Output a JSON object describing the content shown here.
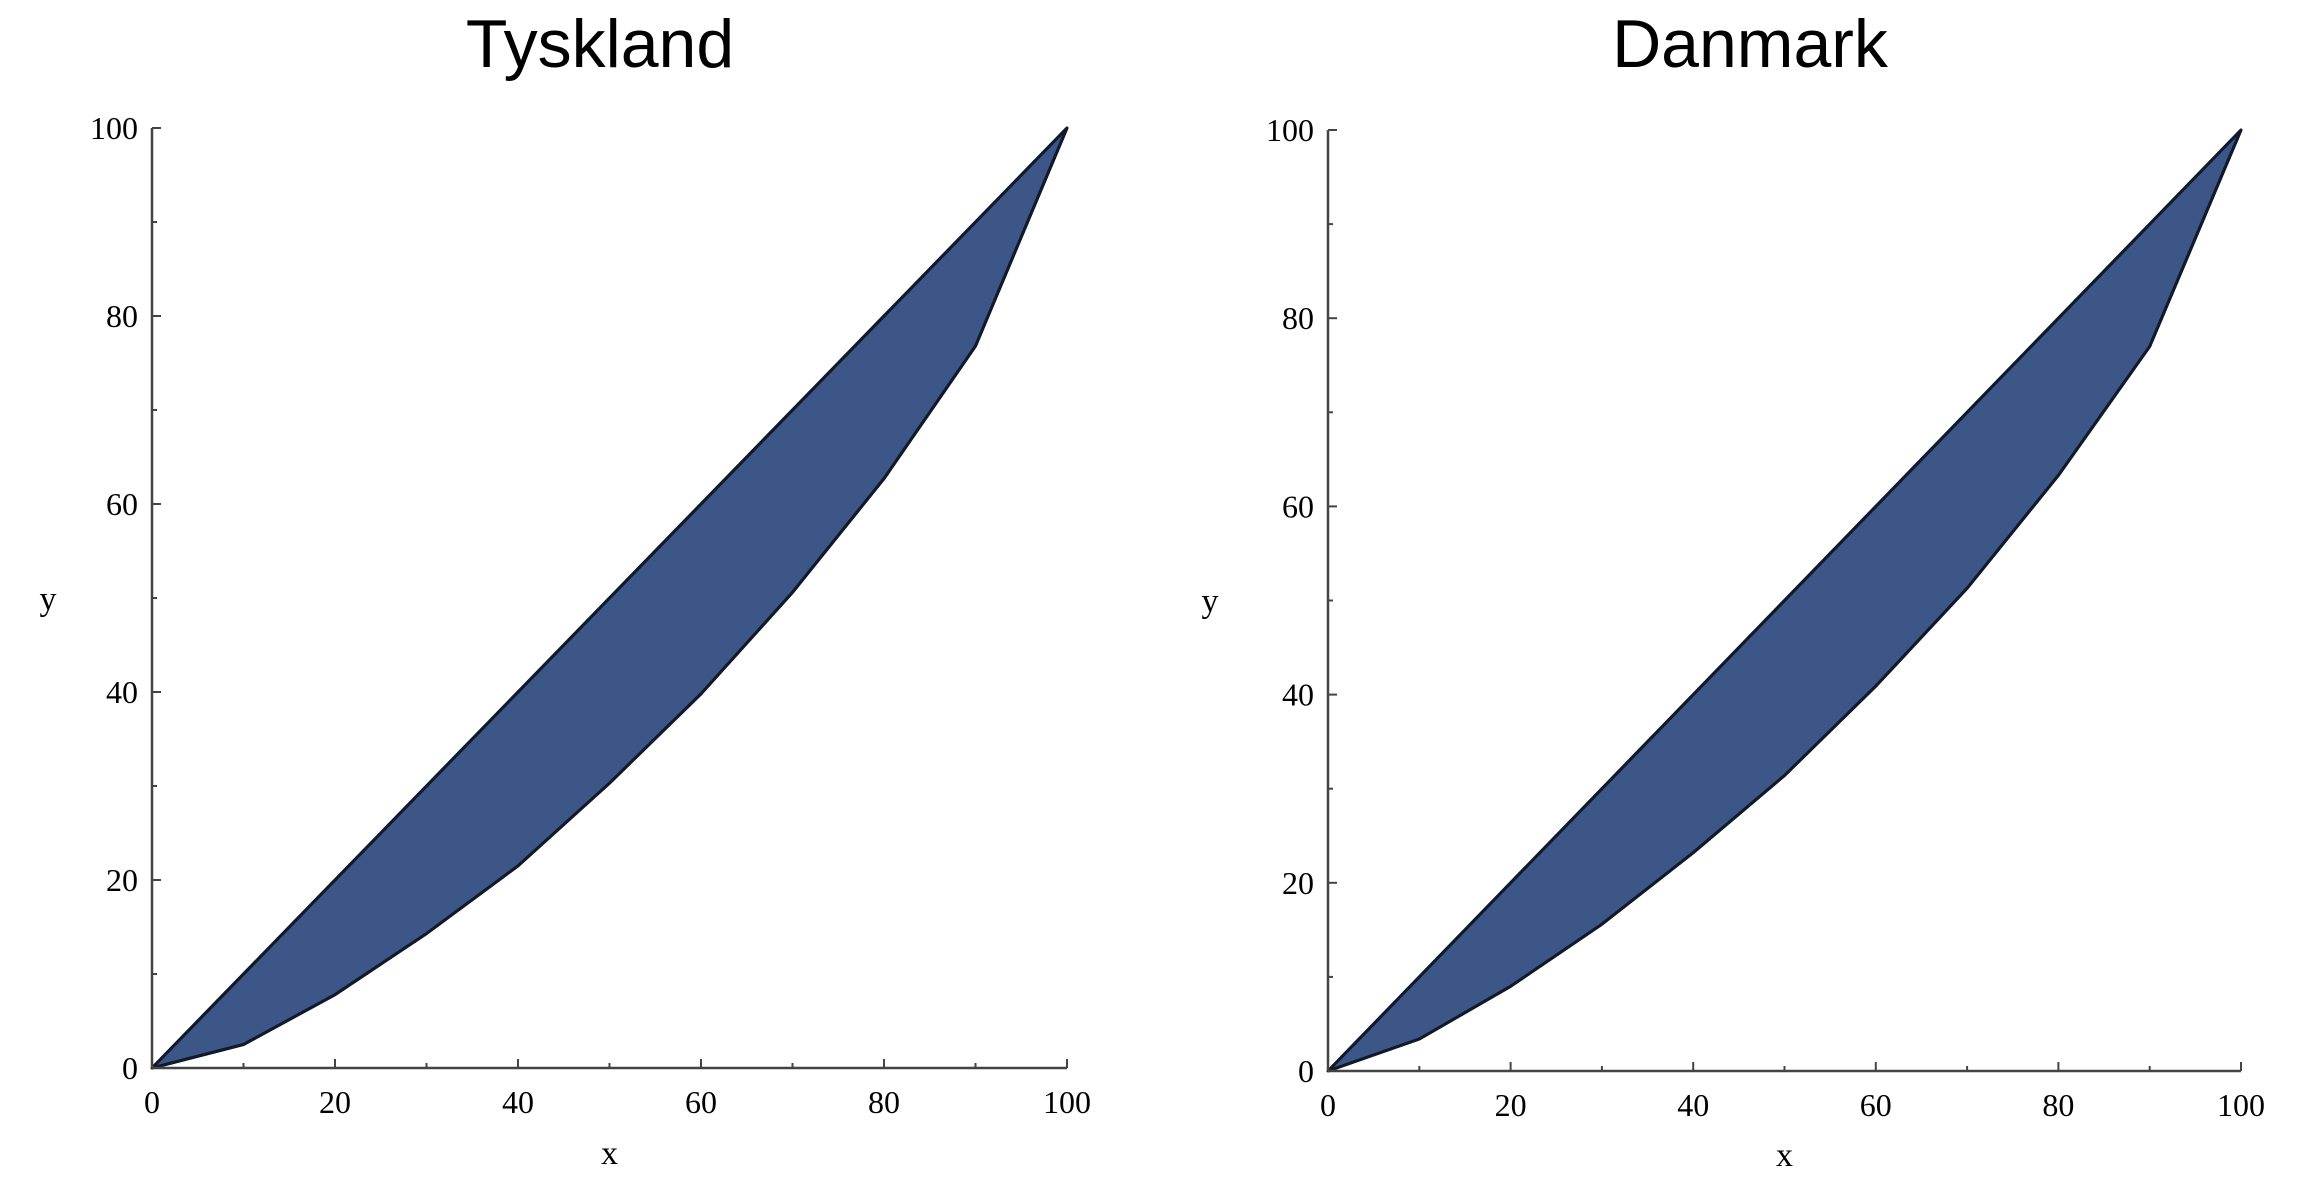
{
  "colors": {
    "fill": "#3c5687",
    "outline": "#111a2b",
    "axis": "#444444"
  },
  "chart_data": [
    {
      "type": "area",
      "title": "Tyskland",
      "xlabel": "x",
      "ylabel": "y",
      "xlim": [
        0,
        100
      ],
      "ylim": [
        0,
        100
      ],
      "xticks": [
        "0",
        "20",
        "40",
        "60",
        "80",
        "100"
      ],
      "yticks": [
        "0",
        "20",
        "40",
        "60",
        "80",
        "100"
      ],
      "grid": false,
      "series": [
        {
          "x": [
            0,
            100
          ],
          "y": [
            0,
            100
          ]
        },
        {
          "x": [
            0,
            10,
            20,
            30,
            40,
            50,
            60,
            70,
            80,
            90,
            100
          ],
          "y": [
            0,
            2.5,
            7.8,
            14.3,
            21.5,
            30.3,
            39.8,
            50.6,
            62.7,
            76.8,
            100
          ]
        }
      ]
    },
    {
      "type": "area",
      "title": "Danmark",
      "xlabel": "x",
      "ylabel": "y",
      "xlim": [
        0,
        100
      ],
      "ylim": [
        0,
        100
      ],
      "xticks": [
        "0",
        "20",
        "40",
        "60",
        "80",
        "100"
      ],
      "yticks": [
        "0",
        "20",
        "40",
        "60",
        "80",
        "100"
      ],
      "grid": false,
      "series": [
        {
          "x": [
            0,
            100
          ],
          "y": [
            0,
            100
          ]
        },
        {
          "x": [
            0,
            10,
            20,
            30,
            40,
            50,
            60,
            70,
            80,
            90,
            100
          ],
          "y": [
            0,
            3.4,
            9.0,
            15.6,
            23.2,
            31.4,
            40.9,
            51.3,
            63.3,
            77.0,
            100
          ]
        }
      ]
    }
  ]
}
